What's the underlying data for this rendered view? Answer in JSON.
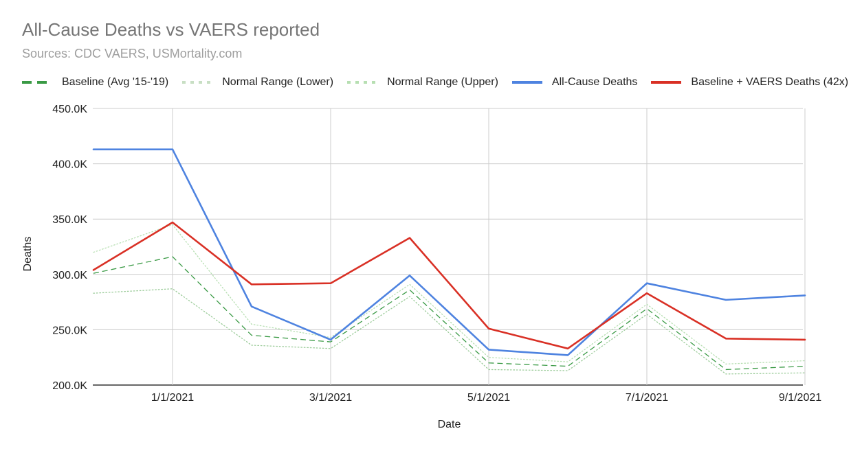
{
  "chart_data": {
    "type": "line",
    "title": "All-Cause Deaths vs VAERS reported",
    "subtitle": "Sources: CDC VAERS, USMortality.com",
    "xlabel": "Date",
    "ylabel": "Deaths",
    "ylim": [
      200000,
      450000
    ],
    "y_ticks": [
      200000,
      250000,
      300000,
      350000,
      400000,
      450000
    ],
    "y_tick_labels": [
      "200.0K",
      "250.0K",
      "300.0K",
      "350.0K",
      "400.0K",
      "450.0K"
    ],
    "x_months": [
      "12/1/2020",
      "1/1/2021",
      "2/1/2021",
      "3/1/2021",
      "4/1/2021",
      "5/1/2021",
      "6/1/2021",
      "7/1/2021",
      "8/1/2021",
      "9/1/2021"
    ],
    "x_tick_labels": [
      "1/1/2021",
      "3/1/2021",
      "5/1/2021",
      "7/1/2021",
      "9/1/2021"
    ],
    "x_tick_index": [
      1,
      3,
      5,
      7,
      9
    ],
    "legend_position": "top",
    "series": [
      {
        "name": "Baseline (Avg '15-'19)",
        "color": "#3a9a45",
        "style": "dashed",
        "values": [
          301000,
          316000,
          245000,
          239000,
          286000,
          220000,
          217000,
          269000,
          214000,
          217000
        ]
      },
      {
        "name": "Normal Range (Lower)",
        "color": "#9ccc9a",
        "style": "dotted",
        "values": [
          283000,
          287000,
          236000,
          233000,
          280000,
          214000,
          213000,
          264000,
          210000,
          211000
        ]
      },
      {
        "name": "Normal Range (Upper)",
        "color": "#b7dfb2",
        "style": "dotted",
        "values": [
          320000,
          345000,
          255000,
          243000,
          291000,
          225000,
          221000,
          273000,
          219000,
          222000
        ]
      },
      {
        "name": "All-Cause Deaths",
        "color": "#4e83e0",
        "style": "solid",
        "values": [
          413000,
          413000,
          271000,
          241000,
          299000,
          232000,
          227000,
          292000,
          277000,
          281000
        ]
      },
      {
        "name": "Baseline + VAERS Deaths (42x)",
        "color": "#d93025",
        "style": "solid",
        "values": [
          304000,
          347000,
          291000,
          292000,
          333000,
          251000,
          233000,
          283000,
          242000,
          241000
        ]
      }
    ]
  }
}
